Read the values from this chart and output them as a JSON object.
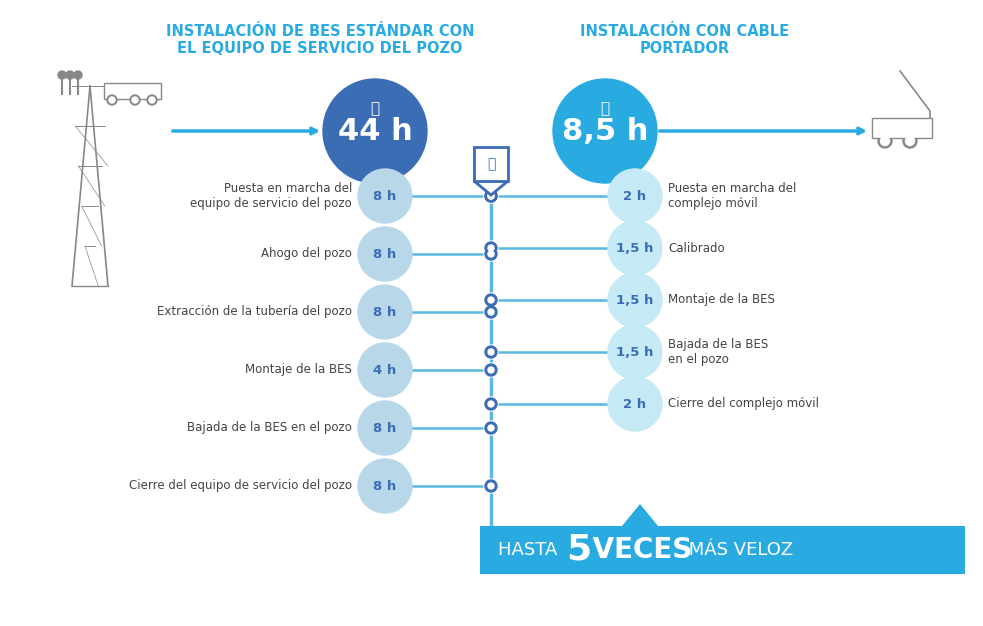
{
  "title_left": "INSTALACIÓN DE BES ESTÁNDAR CON\nEL EQUIPO DE SERVICIO DEL POZO",
  "title_right": "INSTALACIÓN CON CABLE\nPORTADOR",
  "left_time": "44 h",
  "right_time": "8,5 h",
  "left_steps": [
    {
      "label": "Puesta en marcha del\nequipo de servicio del pozo",
      "time": "8 h"
    },
    {
      "label": "Ahogo del pozo",
      "time": "8 h"
    },
    {
      "label": "Extracción de la tubería del pozo",
      "time": "8 h"
    },
    {
      "label": "Montaje de la BES",
      "time": "4 h"
    },
    {
      "label": "Bajada de la BES en el pozo",
      "time": "8 h"
    },
    {
      "label": "Cierre del equipo de servicio del pozo",
      "time": "8 h"
    }
  ],
  "right_steps": [
    {
      "label": "Puesta en marcha del\ncomplejo móvil",
      "time": "2 h"
    },
    {
      "label": "Calibrado",
      "time": "1,5 h"
    },
    {
      "label": "Montaje de la BES",
      "time": "1,5 h"
    },
    {
      "label": "Bajada de la BES\nen el pozo",
      "time": "1,5 h"
    },
    {
      "label": "Cierre del complejo móvil",
      "time": "2 h"
    }
  ],
  "color_dark_blue": "#3B6DB5",
  "color_mid_blue": "#29ABE2",
  "color_light_blue_circle": "#B8D8EA",
  "color_lighter_blue": "#C5EAF5",
  "color_connector_line": "#5BB8E0",
  "color_title": "#29ABE2",
  "color_banner_bg": "#29ABE2",
  "color_white": "#FFFFFF",
  "color_dark": "#444444",
  "color_node_border": "#3B6DB5",
  "color_spine": "#5BB8E0"
}
